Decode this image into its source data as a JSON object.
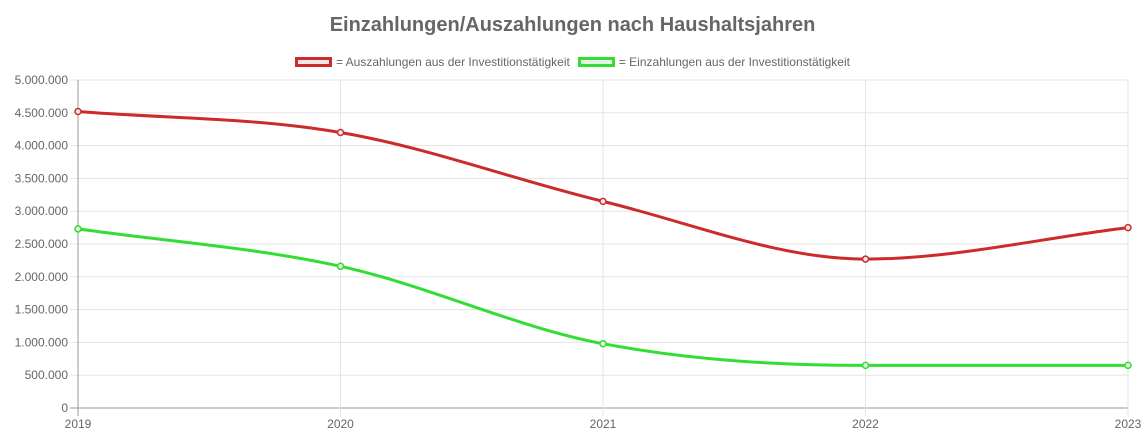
{
  "chart_data": {
    "type": "line",
    "title": "Einzahlungen/Auszahlungen nach Haushaltsjahren",
    "xlabel": "",
    "ylabel": "",
    "categories": [
      "2019",
      "2020",
      "2021",
      "2022",
      "2023"
    ],
    "y_ticks": [
      "0",
      "500.000",
      "1.000.000",
      "1.500.000",
      "2.000.000",
      "2.500.000",
      "3.000.000",
      "3.500.000",
      "4.000.000",
      "4.500.000",
      "5.000.000"
    ],
    "ylim": [
      0,
      5000000
    ],
    "grid": true,
    "legend_position": "top",
    "series": [
      {
        "name": "= Auszahlungen aus der Investitionstätigkeit",
        "color": "#cc2b2b",
        "fill": "#f1e6e6",
        "values": [
          4520000,
          4200000,
          3150000,
          2270000,
          2750000
        ]
      },
      {
        "name": "= Einzahlungen aus der Investitionstätigkeit",
        "color": "#33dd33",
        "fill": "#e4f5e4",
        "values": [
          2730000,
          2160000,
          980000,
          650000,
          650000
        ]
      }
    ]
  }
}
